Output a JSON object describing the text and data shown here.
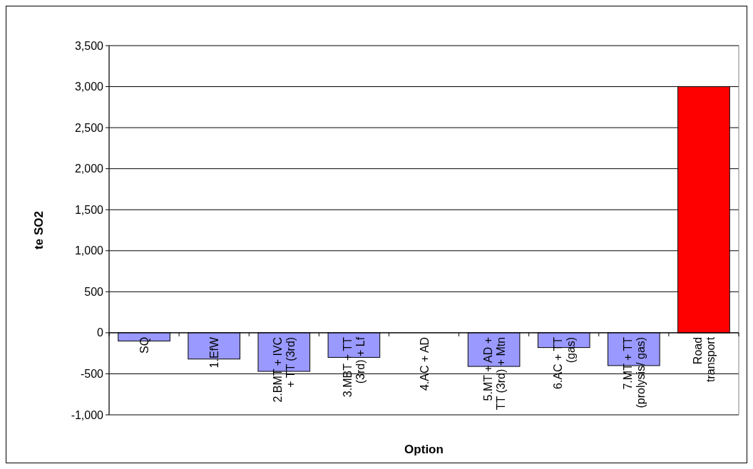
{
  "chart_data": {
    "type": "bar",
    "xlabel": "Option",
    "ylabel": "te SO2",
    "categories": [
      "SQ",
      "1.EfW",
      "2.BMT + IVC\n+ TT (3rd)",
      "3.MBT + TT\n(3rd) + Lf",
      "4.AC + AD",
      "5.MT + AD +\nTT (3rd) + Mtn",
      "6.AC + TT\n(gas)",
      "7.MT + TT\n(prolysis/ gas)",
      "Road\ntransport"
    ],
    "values": [
      -100,
      -320,
      -470,
      -300,
      0,
      -410,
      -180,
      -400,
      3000
    ],
    "colors": [
      "#9999ff",
      "#9999ff",
      "#9999ff",
      "#9999ff",
      "#9999ff",
      "#9999ff",
      "#9999ff",
      "#9999ff",
      "#ff0000"
    ],
    "ylim": [
      -1000,
      3500
    ],
    "yticks": [
      {
        "value": -1000,
        "label": "-1,000"
      },
      {
        "value": -500,
        "label": "-500"
      },
      0,
      500,
      {
        "value": 1000,
        "label": "1,000"
      },
      {
        "value": 1500,
        "label": "1,500"
      },
      {
        "value": 2000,
        "label": "2,000"
      },
      {
        "value": 2500,
        "label": "2,500"
      },
      {
        "value": 3000,
        "label": "3,000"
      },
      {
        "value": 3500,
        "label": "3,500"
      }
    ],
    "grid": "y"
  }
}
